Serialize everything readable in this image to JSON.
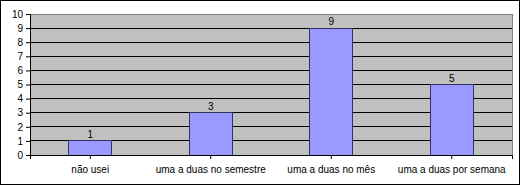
{
  "chart_data": {
    "type": "bar",
    "categories": [
      "não usei",
      "uma a duas no semestre",
      "uma a duas no mês",
      "uma a duas por semana"
    ],
    "values": [
      1,
      3,
      9,
      5
    ],
    "color": "#9999ff",
    "ylim": [
      0,
      10
    ],
    "yticks": [
      0,
      1,
      2,
      3,
      4,
      5,
      6,
      7,
      8,
      9,
      10
    ],
    "grid": true,
    "data_labels": true
  }
}
